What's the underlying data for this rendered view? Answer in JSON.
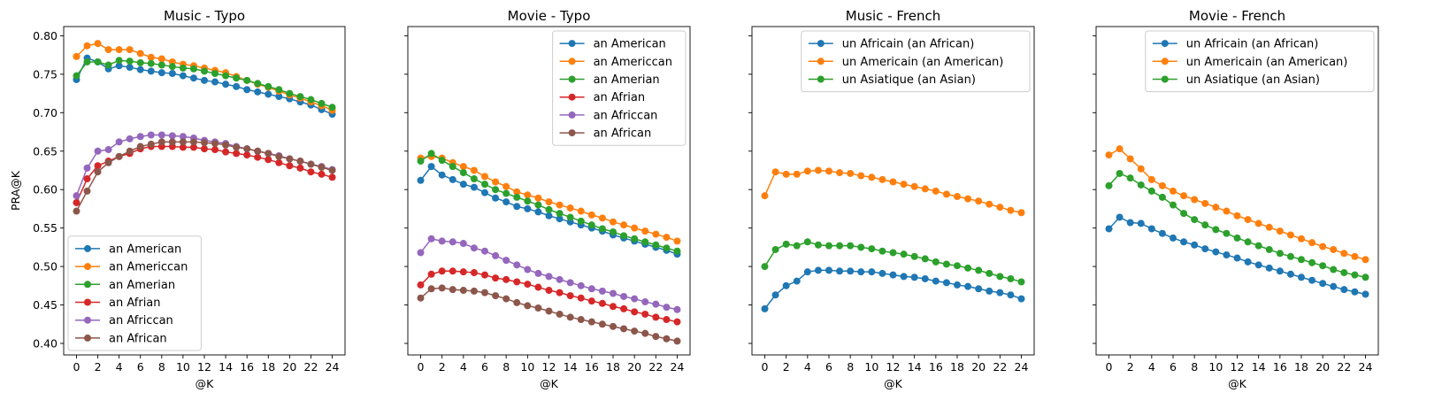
{
  "chart_data": [
    {
      "type": "line",
      "title": "Music - Typo",
      "xlabel": "@K",
      "ylabel": "PRA@K",
      "xlim": [
        -1.2,
        25.2
      ],
      "ylim": [
        0.385,
        0.812
      ],
      "xticks": [
        0,
        2,
        4,
        6,
        8,
        10,
        12,
        14,
        16,
        18,
        20,
        22,
        24
      ],
      "yticks": [
        0.4,
        0.45,
        0.5,
        0.55,
        0.6,
        0.65,
        0.7,
        0.75,
        0.8
      ],
      "ytick_labels": [
        "0.40",
        "0.45",
        "0.50",
        "0.55",
        "0.60",
        "0.65",
        "0.70",
        "0.75",
        "0.80"
      ],
      "legend_position": "lower-left",
      "x": [
        0,
        1,
        2,
        3,
        4,
        5,
        6,
        7,
        8,
        9,
        10,
        11,
        12,
        13,
        14,
        15,
        16,
        17,
        18,
        19,
        20,
        21,
        22,
        23,
        24
      ],
      "series": [
        {
          "name": "an American",
          "color": "#1f77b4",
          "values": [
            0.743,
            0.771,
            0.766,
            0.757,
            0.761,
            0.759,
            0.756,
            0.754,
            0.752,
            0.751,
            0.748,
            0.745,
            0.742,
            0.74,
            0.737,
            0.734,
            0.73,
            0.727,
            0.724,
            0.721,
            0.718,
            0.714,
            0.71,
            0.704,
            0.698
          ]
        },
        {
          "name": "an Americcan",
          "color": "#ff7f0e",
          "values": [
            0.773,
            0.787,
            0.79,
            0.782,
            0.782,
            0.782,
            0.777,
            0.772,
            0.77,
            0.766,
            0.763,
            0.761,
            0.758,
            0.755,
            0.752,
            0.747,
            0.742,
            0.737,
            0.733,
            0.728,
            0.723,
            0.719,
            0.714,
            0.709,
            0.703
          ]
        },
        {
          "name": "an Amerian",
          "color": "#2ca02c",
          "values": [
            0.748,
            0.766,
            0.766,
            0.762,
            0.768,
            0.767,
            0.765,
            0.764,
            0.762,
            0.76,
            0.758,
            0.757,
            0.754,
            0.751,
            0.748,
            0.745,
            0.742,
            0.738,
            0.734,
            0.73,
            0.725,
            0.721,
            0.717,
            0.712,
            0.707
          ]
        },
        {
          "name": "an Afrian",
          "color": "#d62728",
          "values": [
            0.583,
            0.614,
            0.631,
            0.637,
            0.643,
            0.647,
            0.653,
            0.656,
            0.656,
            0.656,
            0.655,
            0.655,
            0.653,
            0.652,
            0.649,
            0.647,
            0.645,
            0.642,
            0.639,
            0.635,
            0.631,
            0.628,
            0.623,
            0.62,
            0.616
          ]
        },
        {
          "name": "an Africcan",
          "color": "#9467bd",
          "values": [
            0.592,
            0.628,
            0.65,
            0.652,
            0.662,
            0.666,
            0.669,
            0.671,
            0.671,
            0.67,
            0.669,
            0.667,
            0.664,
            0.662,
            0.66,
            0.656,
            0.653,
            0.65,
            0.647,
            0.644,
            0.64,
            0.637,
            0.633,
            0.63,
            0.626
          ]
        },
        {
          "name": "an African",
          "color": "#8c564b",
          "values": [
            0.572,
            0.598,
            0.623,
            0.635,
            0.643,
            0.65,
            0.656,
            0.659,
            0.662,
            0.662,
            0.662,
            0.662,
            0.661,
            0.66,
            0.658,
            0.655,
            0.653,
            0.65,
            0.647,
            0.643,
            0.64,
            0.637,
            0.633,
            0.629,
            0.625
          ]
        }
      ]
    },
    {
      "type": "line",
      "title": "Movie - Typo",
      "xlabel": "@K",
      "ylabel": "",
      "xlim": [
        -1.2,
        25.2
      ],
      "ylim": [
        0.385,
        0.812
      ],
      "xticks": [
        0,
        2,
        4,
        6,
        8,
        10,
        12,
        14,
        16,
        18,
        20,
        22,
        24
      ],
      "yticks": [
        0.4,
        0.45,
        0.5,
        0.55,
        0.6,
        0.65,
        0.7,
        0.75,
        0.8
      ],
      "ytick_labels": [],
      "legend_position": "upper-right",
      "x": [
        0,
        1,
        2,
        3,
        4,
        5,
        6,
        7,
        8,
        9,
        10,
        11,
        12,
        13,
        14,
        15,
        16,
        17,
        18,
        19,
        20,
        21,
        22,
        23,
        24
      ],
      "series": [
        {
          "name": "an American",
          "color": "#1f77b4",
          "values": [
            0.612,
            0.63,
            0.619,
            0.613,
            0.607,
            0.603,
            0.596,
            0.589,
            0.584,
            0.578,
            0.575,
            0.571,
            0.566,
            0.562,
            0.558,
            0.554,
            0.55,
            0.546,
            0.541,
            0.537,
            0.533,
            0.529,
            0.525,
            0.521,
            0.516
          ]
        },
        {
          "name": "an Americcan",
          "color": "#ff7f0e",
          "values": [
            0.641,
            0.643,
            0.641,
            0.635,
            0.63,
            0.625,
            0.617,
            0.61,
            0.604,
            0.597,
            0.593,
            0.589,
            0.584,
            0.58,
            0.576,
            0.572,
            0.567,
            0.563,
            0.558,
            0.554,
            0.55,
            0.546,
            0.542,
            0.538,
            0.533
          ]
        },
        {
          "name": "an Amerian",
          "color": "#2ca02c",
          "values": [
            0.637,
            0.647,
            0.638,
            0.63,
            0.622,
            0.614,
            0.607,
            0.6,
            0.595,
            0.59,
            0.585,
            0.58,
            0.574,
            0.569,
            0.564,
            0.559,
            0.554,
            0.549,
            0.545,
            0.54,
            0.536,
            0.532,
            0.528,
            0.524,
            0.52
          ]
        },
        {
          "name": "an Afrian",
          "color": "#d62728",
          "values": [
            0.476,
            0.49,
            0.494,
            0.494,
            0.493,
            0.492,
            0.489,
            0.485,
            0.483,
            0.48,
            0.477,
            0.473,
            0.469,
            0.466,
            0.462,
            0.459,
            0.455,
            0.452,
            0.448,
            0.445,
            0.441,
            0.438,
            0.434,
            0.431,
            0.428
          ]
        },
        {
          "name": "an Africcan",
          "color": "#9467bd",
          "values": [
            0.518,
            0.536,
            0.533,
            0.532,
            0.53,
            0.524,
            0.52,
            0.514,
            0.508,
            0.502,
            0.496,
            0.491,
            0.487,
            0.483,
            0.479,
            0.475,
            0.471,
            0.468,
            0.465,
            0.461,
            0.458,
            0.454,
            0.451,
            0.447,
            0.444
          ]
        },
        {
          "name": "an African",
          "color": "#8c564b",
          "values": [
            0.459,
            0.471,
            0.472,
            0.47,
            0.469,
            0.468,
            0.466,
            0.462,
            0.458,
            0.453,
            0.449,
            0.446,
            0.442,
            0.438,
            0.434,
            0.431,
            0.428,
            0.425,
            0.422,
            0.419,
            0.416,
            0.413,
            0.409,
            0.406,
            0.403
          ]
        }
      ]
    },
    {
      "type": "line",
      "title": "Music - French",
      "xlabel": "@K",
      "ylabel": "",
      "xlim": [
        -1.2,
        25.2
      ],
      "ylim": [
        0.385,
        0.812
      ],
      "xticks": [
        0,
        2,
        4,
        6,
        8,
        10,
        12,
        14,
        16,
        18,
        20,
        22,
        24
      ],
      "yticks": [
        0.4,
        0.45,
        0.5,
        0.55,
        0.6,
        0.65,
        0.7,
        0.75,
        0.8
      ],
      "ytick_labels": [],
      "legend_position": "upper-right",
      "x": [
        0,
        1,
        2,
        3,
        4,
        5,
        6,
        7,
        8,
        9,
        10,
        11,
        12,
        13,
        14,
        15,
        16,
        17,
        18,
        19,
        20,
        21,
        22,
        23,
        24
      ],
      "series": [
        {
          "name": "un Africain (an African)",
          "color": "#1f77b4",
          "values": [
            0.445,
            0.463,
            0.475,
            0.481,
            0.493,
            0.495,
            0.495,
            0.494,
            0.494,
            0.493,
            0.493,
            0.491,
            0.489,
            0.487,
            0.486,
            0.484,
            0.481,
            0.479,
            0.476,
            0.474,
            0.471,
            0.468,
            0.466,
            0.463,
            0.458
          ]
        },
        {
          "name": "un Americain (an American)",
          "color": "#ff7f0e",
          "values": [
            0.592,
            0.623,
            0.62,
            0.62,
            0.624,
            0.625,
            0.624,
            0.622,
            0.621,
            0.618,
            0.616,
            0.613,
            0.61,
            0.607,
            0.604,
            0.601,
            0.598,
            0.594,
            0.591,
            0.588,
            0.585,
            0.581,
            0.577,
            0.573,
            0.57
          ]
        },
        {
          "name": "un Asiatique (an Asian)",
          "color": "#2ca02c",
          "values": [
            0.5,
            0.522,
            0.529,
            0.527,
            0.532,
            0.528,
            0.527,
            0.527,
            0.527,
            0.525,
            0.523,
            0.52,
            0.518,
            0.516,
            0.513,
            0.51,
            0.506,
            0.503,
            0.501,
            0.498,
            0.495,
            0.491,
            0.487,
            0.484,
            0.48
          ]
        }
      ]
    },
    {
      "type": "line",
      "title": "Movie - French",
      "xlabel": "@K",
      "ylabel": "",
      "xlim": [
        -1.2,
        25.2
      ],
      "ylim": [
        0.385,
        0.812
      ],
      "xticks": [
        0,
        2,
        4,
        6,
        8,
        10,
        12,
        14,
        16,
        18,
        20,
        22,
        24
      ],
      "yticks": [
        0.4,
        0.45,
        0.5,
        0.55,
        0.6,
        0.65,
        0.7,
        0.75,
        0.8
      ],
      "ytick_labels": [],
      "legend_position": "upper-right",
      "x": [
        0,
        1,
        2,
        3,
        4,
        5,
        6,
        7,
        8,
        9,
        10,
        11,
        12,
        13,
        14,
        15,
        16,
        17,
        18,
        19,
        20,
        21,
        22,
        23,
        24
      ],
      "series": [
        {
          "name": "un Africain (an African)",
          "color": "#1f77b4",
          "values": [
            0.549,
            0.564,
            0.557,
            0.556,
            0.549,
            0.543,
            0.537,
            0.532,
            0.528,
            0.523,
            0.519,
            0.515,
            0.511,
            0.506,
            0.502,
            0.498,
            0.494,
            0.49,
            0.486,
            0.482,
            0.478,
            0.474,
            0.47,
            0.467,
            0.464
          ]
        },
        {
          "name": "un Americain (an American)",
          "color": "#ff7f0e",
          "values": [
            0.645,
            0.653,
            0.64,
            0.627,
            0.613,
            0.605,
            0.598,
            0.592,
            0.587,
            0.582,
            0.577,
            0.572,
            0.566,
            0.561,
            0.556,
            0.551,
            0.546,
            0.541,
            0.536,
            0.531,
            0.526,
            0.522,
            0.517,
            0.513,
            0.509
          ]
        },
        {
          "name": "un Asiatique (an Asian)",
          "color": "#2ca02c",
          "values": [
            0.605,
            0.621,
            0.615,
            0.606,
            0.598,
            0.59,
            0.58,
            0.569,
            0.561,
            0.554,
            0.548,
            0.543,
            0.537,
            0.532,
            0.527,
            0.522,
            0.517,
            0.513,
            0.509,
            0.505,
            0.501,
            0.496,
            0.492,
            0.489,
            0.486
          ]
        }
      ]
    }
  ]
}
